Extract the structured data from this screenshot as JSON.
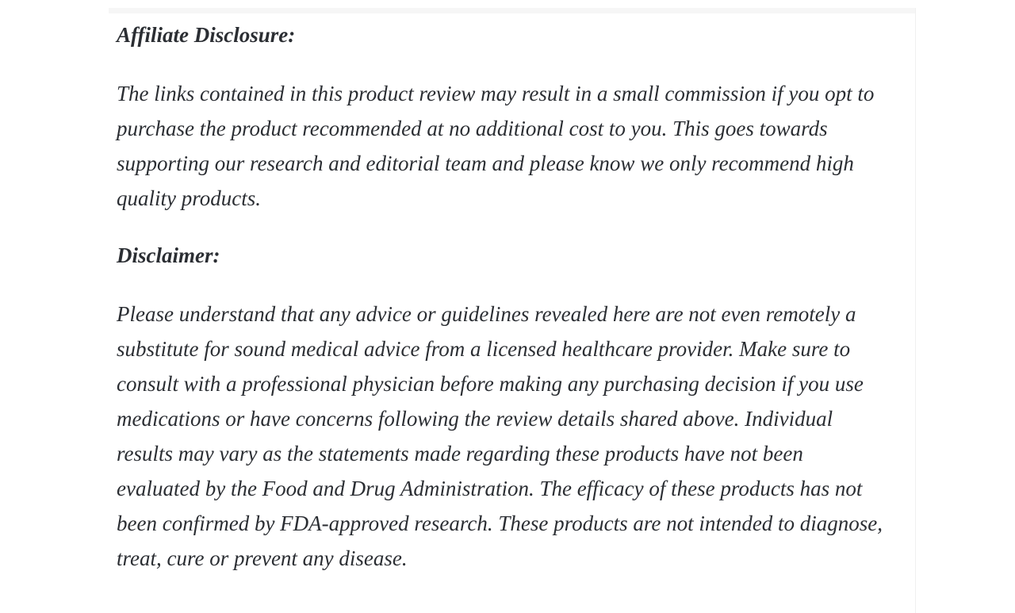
{
  "page": {
    "background_color": "#ffffff",
    "text_color": "#2b2e33",
    "top_strip_color": "#f6f6f6",
    "column_border_color": "#f0f0f0"
  },
  "article": {
    "affiliate": {
      "heading": "Affiliate Disclosure:",
      "paragraph": "The links contained in this product review may result in a small commission if you opt to purchase the product recommended at no additional cost to you. This goes towards supporting our research and editorial team and please know we only recommend high quality products."
    },
    "disclaimer": {
      "heading": "Disclaimer:",
      "paragraph": "Please understand that any advice or guidelines revealed here are not even remotely a substitute for sound medical advice from a licensed healthcare provider. Make sure to consult with a professional physician before making any purchasing decision if you use medications or have concerns following the review details shared above. Individual results may vary as the statements made regarding these products have not been evaluated by the Food and Drug Administration. The efficacy of these products has not been confirmed by FDA-approved research. These products are not intended to diagnose, treat, cure or prevent any disease."
    }
  }
}
